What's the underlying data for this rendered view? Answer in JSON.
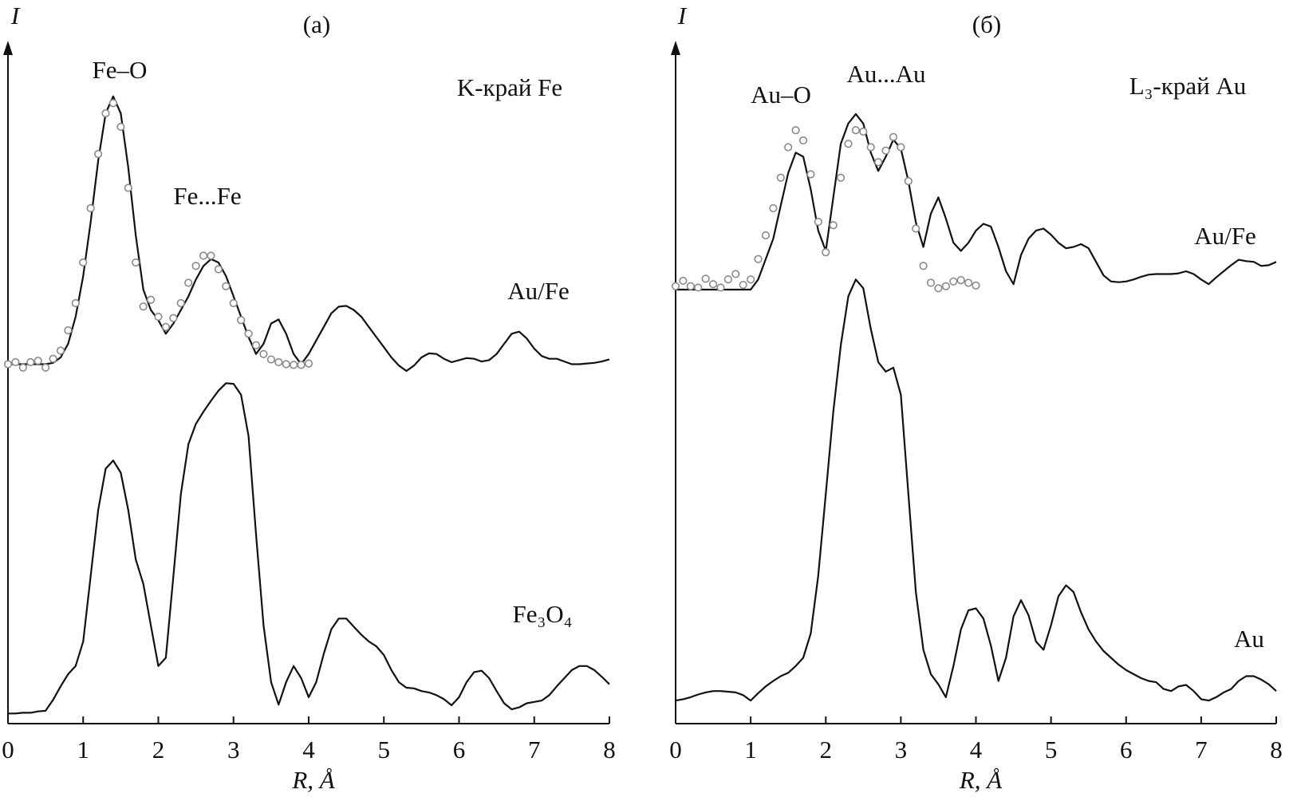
{
  "chart_data": [
    {
      "type": "line",
      "label": "(a)",
      "y_label": "I",
      "x_label": "R, Å",
      "xlim": [
        0,
        8
      ],
      "xticks": [
        0,
        1,
        2,
        3,
        4,
        5,
        6,
        7,
        8
      ],
      "ylim": [
        0,
        100
      ],
      "x": [
        0,
        0.1,
        0.2,
        0.3,
        0.4,
        0.5,
        0.6,
        0.7,
        0.8,
        0.9,
        1,
        1.1,
        1.2,
        1.3,
        1.4,
        1.5,
        1.6,
        1.7,
        1.8,
        1.9,
        2,
        2.1,
        2.2,
        2.3,
        2.4,
        2.5,
        2.6,
        2.7,
        2.8,
        2.9,
        3,
        3.1,
        3.2,
        3.3,
        3.4,
        3.5,
        3.6,
        3.7,
        3.8,
        3.9,
        4,
        4.1,
        4.2,
        4.3,
        4.4,
        4.5,
        4.6,
        4.7,
        4.8,
        4.9,
        5,
        5.1,
        5.2,
        5.3,
        5.4,
        5.5,
        5.6,
        5.7,
        5.8,
        5.9,
        6,
        6.1,
        6.2,
        6.3,
        6.4,
        6.5,
        6.6,
        6.7,
        6.8,
        6.9,
        7,
        7.1,
        7.2,
        7.3,
        7.4,
        7.5,
        7.6,
        7.7,
        7.8,
        7.9,
        8
      ],
      "series": [
        {
          "name": "Au/Fe",
          "color": "#111111",
          "marker": "line",
          "values": [
            53,
            53,
            53,
            53,
            53,
            53,
            53.2,
            54,
            56,
            60,
            66,
            74,
            83,
            90,
            92.5,
            90,
            82,
            72,
            64,
            61,
            59.5,
            57.5,
            59,
            61,
            63,
            65.5,
            67.5,
            68.5,
            68,
            66,
            63,
            60,
            57,
            54.5,
            56,
            59,
            59.6,
            57.5,
            54.5,
            53,
            54.5,
            56.5,
            58.5,
            60.5,
            61.5,
            61.6,
            61,
            60,
            58.5,
            57,
            55.5,
            54,
            52.8,
            52,
            52.8,
            54,
            54.6,
            54.5,
            53.8,
            53.3,
            53.6,
            53.9,
            53.8,
            53.4,
            53.6,
            54.5,
            56,
            57.5,
            57.8,
            56.8,
            55.3,
            54.2,
            53.8,
            53.8,
            53.4,
            53,
            53,
            53.1,
            53.2,
            53.4,
            53.7
          ]
        },
        {
          "color": "#8a8a8a",
          "marker": "circle",
          "values": [
            53,
            53.3,
            52.5,
            53.3,
            53.5,
            52.5,
            53.8,
            55,
            58,
            62,
            68,
            76,
            84,
            90,
            91.5,
            88,
            79,
            68,
            61.5,
            62.5,
            60,
            58.5,
            59.8,
            62,
            65,
            67.5,
            69,
            69,
            67,
            64.5,
            62,
            59.5,
            57.5,
            55.8,
            54.5,
            53.7,
            53.3,
            53,
            52.9,
            52.9,
            53.1,
            null,
            null,
            null,
            null,
            null,
            null,
            null,
            null,
            null,
            null,
            null,
            null,
            null,
            null,
            null,
            null,
            null,
            null,
            null,
            null,
            null,
            null,
            null,
            null,
            null,
            null,
            null,
            null,
            null,
            null,
            null,
            null,
            null,
            null,
            null,
            null,
            null,
            null,
            null,
            null
          ]
        },
        {
          "name": "Fe₃O₄",
          "color": "#111111",
          "marker": "line",
          "values": [
            1.5,
            1.5,
            1.6,
            1.6,
            1.8,
            1.9,
            3.5,
            5.5,
            7.3,
            8.5,
            12.1,
            21.8,
            31.5,
            37.6,
            38.8,
            37,
            31.5,
            24.2,
            20.6,
            14.5,
            8.5,
            9.7,
            21.8,
            33.9,
            41.2,
            44.2,
            46,
            47.6,
            49.1,
            50.2,
            50.1,
            48.5,
            42.4,
            27.9,
            14.5,
            6.1,
            2.8,
            6.1,
            8.5,
            6.7,
            3.9,
            6.1,
            10.3,
            13.9,
            15.5,
            15.5,
            14.3,
            13.1,
            12.1,
            11.4,
            10.1,
            7.9,
            6.1,
            5.3,
            5.2,
            4.8,
            4.6,
            4.2,
            3.6,
            2.7,
            3.9,
            6.1,
            7.6,
            7.8,
            6.7,
            4.8,
            3,
            2.1,
            2.4,
            3,
            3.2,
            3.4,
            4.2,
            5.5,
            6.7,
            7.9,
            8.5,
            8.5,
            7.9,
            6.9,
            5.8
          ]
        }
      ],
      "annotations": [
        {
          "text": "Fe–O"
        },
        {
          "text": "Fe...Fe"
        },
        {
          "text": "K-край Fe"
        }
      ]
    },
    {
      "type": "line",
      "label": "(б)",
      "y_label": "I",
      "x_label": "R, Å",
      "xlim": [
        0,
        8
      ],
      "xticks": [
        0,
        1,
        2,
        3,
        4,
        5,
        6,
        7,
        8
      ],
      "ylim": [
        0,
        100
      ],
      "x": [
        0,
        0.1,
        0.2,
        0.3,
        0.4,
        0.5,
        0.6,
        0.7,
        0.8,
        0.9,
        1,
        1.1,
        1.2,
        1.3,
        1.4,
        1.5,
        1.6,
        1.7,
        1.8,
        1.9,
        2,
        2.1,
        2.2,
        2.3,
        2.4,
        2.5,
        2.6,
        2.7,
        2.8,
        2.9,
        3,
        3.1,
        3.2,
        3.3,
        3.4,
        3.5,
        3.6,
        3.7,
        3.8,
        3.9,
        4,
        4.1,
        4.2,
        4.3,
        4.4,
        4.5,
        4.6,
        4.7,
        4.8,
        4.9,
        5,
        5.1,
        5.2,
        5.3,
        5.4,
        5.5,
        5.6,
        5.7,
        5.8,
        5.9,
        6,
        6.1,
        6.2,
        6.3,
        6.4,
        6.5,
        6.6,
        6.7,
        6.8,
        6.9,
        7,
        7.1,
        7.2,
        7.3,
        7.4,
        7.5,
        7.6,
        7.7,
        7.8,
        7.9,
        8
      ],
      "series": [
        {
          "name": "Au/Fe",
          "color": "#111111",
          "marker": "line",
          "values": [
            64,
            64,
            64,
            64,
            64,
            64,
            64,
            64,
            64,
            64,
            64,
            65.5,
            68.5,
            71.5,
            76.4,
            81.2,
            84.2,
            83.6,
            78.8,
            72.7,
            69.7,
            77.6,
            85.5,
            88.5,
            89.9,
            88.5,
            84.2,
            81.5,
            83.6,
            86.1,
            84.8,
            80,
            73.9,
            70.3,
            75.2,
            77.6,
            74.5,
            70.9,
            69.7,
            70.9,
            72.7,
            73.7,
            73.3,
            70.3,
            66.7,
            64.8,
            69.1,
            71.5,
            72.7,
            73,
            72.1,
            70.9,
            70.1,
            70.3,
            70.7,
            70.1,
            68.1,
            66.1,
            65.2,
            65.1,
            65.2,
            65.5,
            65.9,
            66.2,
            66.3,
            66.3,
            66.3,
            66.4,
            66.7,
            66.3,
            65.5,
            64.8,
            65.8,
            66.7,
            67.6,
            68.4,
            68.2,
            68.1,
            67.5,
            67.6,
            68.1
          ]
        },
        {
          "color": "#8a8a8a",
          "marker": "circle",
          "values": [
            64.5,
            65.3,
            64.5,
            64.3,
            65.6,
            64.8,
            64.3,
            65.5,
            66.3,
            64.7,
            65.5,
            68.5,
            72,
            76,
            80.5,
            85,
            87.5,
            86,
            81,
            74,
            69.5,
            73.5,
            80.5,
            85.5,
            87.5,
            87.3,
            85,
            82.8,
            84.5,
            86.5,
            85,
            80,
            73,
            67.5,
            65,
            64.2,
            64.5,
            65.2,
            65.4,
            65,
            64.6,
            null,
            null,
            null,
            null,
            null,
            null,
            null,
            null,
            null,
            null,
            null,
            null,
            null,
            null,
            null,
            null,
            null,
            null,
            null,
            null,
            null,
            null,
            null,
            null,
            null,
            null,
            null,
            null,
            null,
            null,
            null,
            null,
            null,
            null,
            null,
            null,
            null,
            null,
            null,
            null
          ]
        },
        {
          "name": "Au",
          "color": "#111111",
          "marker": "line",
          "values": [
            3.4,
            3.6,
            3.9,
            4.3,
            4.6,
            4.8,
            4.8,
            4.7,
            4.6,
            4.2,
            3.4,
            4.5,
            5.5,
            6.3,
            7,
            7.5,
            8.5,
            9.7,
            13.3,
            21.8,
            33.9,
            46,
            55.8,
            63,
            65.5,
            64.2,
            58.2,
            53.3,
            51.9,
            52.5,
            48.5,
            33.9,
            19.4,
            10.9,
            7.3,
            5.8,
            3.9,
            8.5,
            13.9,
            16.7,
            17,
            15.5,
            11.5,
            6.3,
            9.7,
            15.8,
            18.2,
            16,
            12.1,
            10.9,
            14.5,
            18.8,
            20.4,
            19.4,
            16.4,
            13.9,
            12.1,
            10.7,
            9.7,
            8.7,
            7.9,
            7.3,
            6.7,
            6.3,
            6.1,
            5.1,
            4.8,
            5.5,
            5.7,
            4.8,
            3.6,
            3.4,
            3.9,
            4.6,
            5.1,
            6.3,
            7,
            7,
            6.5,
            5.8,
            4.8
          ]
        }
      ],
      "annotations": [
        {
          "text": "Au–O"
        },
        {
          "text": "Au...Au"
        },
        {
          "text": "L₃-край Au"
        }
      ]
    }
  ]
}
